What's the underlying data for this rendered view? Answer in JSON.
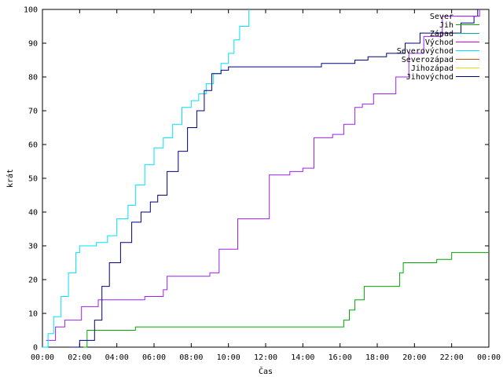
{
  "chart_data": {
    "type": "line",
    "title": "",
    "xlabel": "Čas",
    "ylabel": "krát",
    "xlim": [
      0,
      24
    ],
    "ylim": [
      0,
      100
    ],
    "x_ticks": [
      {
        "v": 0,
        "label": "00:00"
      },
      {
        "v": 2,
        "label": "02:00"
      },
      {
        "v": 4,
        "label": "04:00"
      },
      {
        "v": 6,
        "label": "06:00"
      },
      {
        "v": 8,
        "label": "08:00"
      },
      {
        "v": 10,
        "label": "10:00"
      },
      {
        "v": 12,
        "label": "12:00"
      },
      {
        "v": 14,
        "label": "14:00"
      },
      {
        "v": 16,
        "label": "16:00"
      },
      {
        "v": 18,
        "label": "18:00"
      },
      {
        "v": 20,
        "label": "20:00"
      },
      {
        "v": 22,
        "label": "22:00"
      },
      {
        "v": 24,
        "label": "00:00"
      }
    ],
    "y_ticks": [
      0,
      10,
      20,
      30,
      40,
      50,
      60,
      70,
      80,
      90,
      100
    ],
    "grid": false,
    "legend_position": "top-right",
    "series": [
      {
        "name": "Sever",
        "color": "#a020f0",
        "x": [
          0.2,
          0.7,
          1.2,
          1.5,
          2.1,
          3.0,
          5.5,
          6.5,
          6.7,
          9.0,
          9.5,
          10.5,
          12.2,
          13.3,
          14.0,
          14.6,
          15.6,
          16.2,
          16.8,
          17.2,
          17.8,
          18.5,
          19.0,
          19.7,
          20.5,
          21.5,
          23.5
        ],
        "y": [
          2,
          6,
          8,
          8,
          12,
          14,
          15,
          17,
          21,
          22,
          29,
          38,
          51,
          52,
          53,
          62,
          63,
          66,
          71,
          72,
          75,
          75,
          80,
          87,
          92,
          98,
          100
        ]
      },
      {
        "name": "Jih",
        "color": "#00aa00",
        "x": [
          2.2,
          2.4,
          4.7,
          5.0,
          12.0,
          15.5,
          16.2,
          16.5,
          16.8,
          17.3,
          18.5,
          19.2,
          19.4,
          21.0,
          21.2,
          22.0,
          24.0
        ],
        "y": [
          0,
          5,
          5,
          6,
          6,
          6,
          8,
          11,
          14,
          18,
          18,
          22,
          25,
          25,
          26,
          28,
          28
        ]
      },
      {
        "name": "Západ",
        "color": "#00aaaa",
        "x": [],
        "y": []
      },
      {
        "name": "Východ",
        "color": "#dd00dd",
        "x": [],
        "y": []
      },
      {
        "name": "Severovýchod",
        "color": "#00e0ff",
        "x": [
          0.0,
          0.3,
          0.6,
          1.0,
          1.4,
          1.8,
          2.0,
          2.9,
          3.5,
          4.0,
          4.6,
          5.0,
          5.5,
          6.0,
          6.5,
          7.0,
          7.5,
          8.0,
          8.4,
          8.8,
          9.2,
          9.6,
          10.0,
          10.3,
          10.6,
          11.1
        ],
        "y": [
          0,
          4,
          9,
          15,
          22,
          28,
          30,
          31,
          33,
          38,
          42,
          48,
          54,
          59,
          62,
          66,
          71,
          73,
          75,
          78,
          81,
          84,
          87,
          91,
          95,
          100
        ]
      },
      {
        "name": "Severozápad",
        "color": "#c85000",
        "x": [],
        "y": []
      },
      {
        "name": "Jihozápad",
        "color": "#e0e000",
        "x": [],
        "y": []
      },
      {
        "name": "Jihovýchod",
        "color": "#000080",
        "x": [
          1.5,
          2.0,
          2.8,
          3.2,
          3.6,
          4.2,
          4.8,
          5.3,
          5.8,
          6.2,
          6.7,
          7.3,
          7.8,
          8.3,
          8.7,
          9.1,
          9.6,
          10.0,
          12.0,
          15.0,
          16.8,
          17.5,
          18.5,
          19.5,
          20.3,
          21.5,
          22.5,
          23.2,
          23.4
        ],
        "y": [
          0,
          2,
          8,
          18,
          25,
          31,
          37,
          40,
          43,
          45,
          52,
          58,
          65,
          70,
          76,
          81,
          82,
          83,
          83,
          84,
          85,
          86,
          87,
          90,
          93,
          93,
          96,
          98,
          100
        ]
      }
    ]
  }
}
